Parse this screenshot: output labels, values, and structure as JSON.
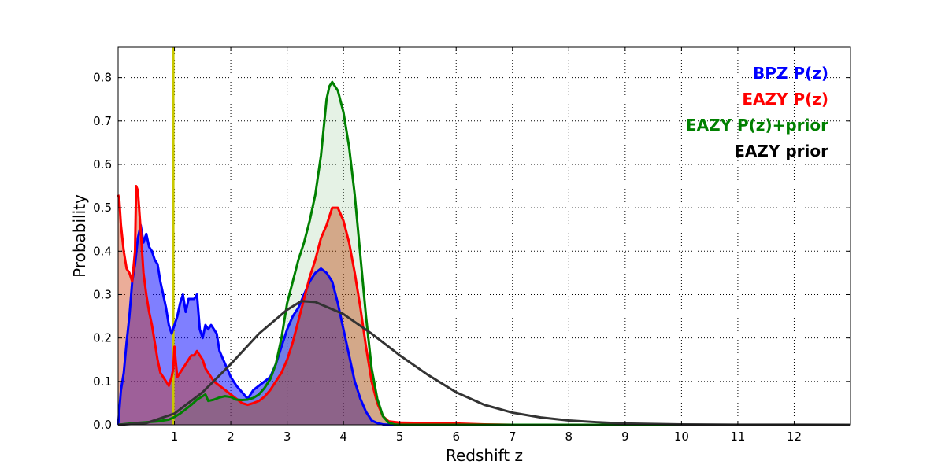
{
  "chart_data": {
    "type": "area",
    "xlabel": "Redshift z",
    "ylabel": "Probability",
    "xlim": [
      0,
      13
    ],
    "ylim": [
      0,
      0.87
    ],
    "grid": true,
    "legend_placement": "top-right",
    "x_ticks": [
      1,
      2,
      3,
      4,
      5,
      6,
      7,
      8,
      9,
      10,
      11,
      12
    ],
    "x_tick_labels": [
      "1",
      "2",
      "3",
      "4",
      "5",
      "6",
      "7",
      "8",
      "9",
      "10",
      "11",
      "12"
    ],
    "y_ticks": [
      0,
      0.1,
      0.2,
      0.3,
      0.4,
      0.5,
      0.6,
      0.7,
      0.8
    ],
    "y_tick_labels": [
      "0.0",
      "0.1",
      "0.2",
      "0.3",
      "0.4",
      "0.5",
      "0.6",
      "0.7",
      "0.8"
    ],
    "vertical_marker": {
      "x": 0.98,
      "color": "#c8c800"
    },
    "series": [
      {
        "name": "BPZ P(z)",
        "color": "#0000ff",
        "fill": "#0000ff",
        "fill_opacity": 0.5,
        "points": [
          [
            0,
            0
          ],
          [
            0.05,
            0.08
          ],
          [
            0.1,
            0.12
          ],
          [
            0.15,
            0.19
          ],
          [
            0.2,
            0.25
          ],
          [
            0.25,
            0.33
          ],
          [
            0.3,
            0.37
          ],
          [
            0.35,
            0.43
          ],
          [
            0.4,
            0.46
          ],
          [
            0.45,
            0.42
          ],
          [
            0.5,
            0.44
          ],
          [
            0.55,
            0.41
          ],
          [
            0.6,
            0.4
          ],
          [
            0.65,
            0.38
          ],
          [
            0.7,
            0.37
          ],
          [
            0.75,
            0.33
          ],
          [
            0.8,
            0.3
          ],
          [
            0.85,
            0.27
          ],
          [
            0.9,
            0.23
          ],
          [
            0.95,
            0.21
          ],
          [
            1.0,
            0.23
          ],
          [
            1.05,
            0.25
          ],
          [
            1.1,
            0.28
          ],
          [
            1.15,
            0.3
          ],
          [
            1.2,
            0.26
          ],
          [
            1.25,
            0.29
          ],
          [
            1.3,
            0.29
          ],
          [
            1.35,
            0.29
          ],
          [
            1.4,
            0.3
          ],
          [
            1.45,
            0.22
          ],
          [
            1.5,
            0.2
          ],
          [
            1.55,
            0.23
          ],
          [
            1.6,
            0.22
          ],
          [
            1.65,
            0.23
          ],
          [
            1.7,
            0.22
          ],
          [
            1.75,
            0.21
          ],
          [
            1.8,
            0.17
          ],
          [
            1.9,
            0.14
          ],
          [
            2.0,
            0.11
          ],
          [
            2.1,
            0.09
          ],
          [
            2.2,
            0.075
          ],
          [
            2.3,
            0.06
          ],
          [
            2.4,
            0.08
          ],
          [
            2.5,
            0.09
          ],
          [
            2.6,
            0.1
          ],
          [
            2.7,
            0.11
          ],
          [
            2.8,
            0.14
          ],
          [
            2.9,
            0.18
          ],
          [
            3.0,
            0.22
          ],
          [
            3.1,
            0.25
          ],
          [
            3.2,
            0.27
          ],
          [
            3.3,
            0.3
          ],
          [
            3.4,
            0.33
          ],
          [
            3.5,
            0.35
          ],
          [
            3.6,
            0.36
          ],
          [
            3.7,
            0.35
          ],
          [
            3.8,
            0.33
          ],
          [
            3.9,
            0.28
          ],
          [
            4.0,
            0.22
          ],
          [
            4.1,
            0.16
          ],
          [
            4.2,
            0.1
          ],
          [
            4.3,
            0.06
          ],
          [
            4.4,
            0.03
          ],
          [
            4.5,
            0.01
          ],
          [
            4.6,
            0.004
          ],
          [
            4.7,
            0.001
          ],
          [
            4.8,
            0
          ],
          [
            13,
            0
          ]
        ]
      },
      {
        "name": "EAZY P(z)",
        "color": "#ff0000",
        "fill": "#cc3300",
        "fill_opacity": 0.4,
        "points": [
          [
            0,
            0.53
          ],
          [
            0.02,
            0.52
          ],
          [
            0.05,
            0.46
          ],
          [
            0.1,
            0.4
          ],
          [
            0.15,
            0.36
          ],
          [
            0.2,
            0.35
          ],
          [
            0.25,
            0.33
          ],
          [
            0.3,
            0.4
          ],
          [
            0.32,
            0.55
          ],
          [
            0.35,
            0.54
          ],
          [
            0.4,
            0.45
          ],
          [
            0.45,
            0.35
          ],
          [
            0.5,
            0.3
          ],
          [
            0.55,
            0.26
          ],
          [
            0.6,
            0.23
          ],
          [
            0.65,
            0.19
          ],
          [
            0.7,
            0.15
          ],
          [
            0.75,
            0.12
          ],
          [
            0.8,
            0.11
          ],
          [
            0.85,
            0.1
          ],
          [
            0.9,
            0.09
          ],
          [
            0.95,
            0.11
          ],
          [
            0.98,
            0.13
          ],
          [
            1.0,
            0.18
          ],
          [
            1.02,
            0.15
          ],
          [
            1.05,
            0.11
          ],
          [
            1.1,
            0.12
          ],
          [
            1.15,
            0.13
          ],
          [
            1.2,
            0.14
          ],
          [
            1.25,
            0.15
          ],
          [
            1.3,
            0.16
          ],
          [
            1.35,
            0.16
          ],
          [
            1.4,
            0.17
          ],
          [
            1.45,
            0.16
          ],
          [
            1.5,
            0.15
          ],
          [
            1.55,
            0.13
          ],
          [
            1.6,
            0.12
          ],
          [
            1.7,
            0.1
          ],
          [
            1.8,
            0.09
          ],
          [
            1.9,
            0.08
          ],
          [
            2.0,
            0.07
          ],
          [
            2.1,
            0.06
          ],
          [
            2.2,
            0.05
          ],
          [
            2.3,
            0.046
          ],
          [
            2.4,
            0.05
          ],
          [
            2.5,
            0.055
          ],
          [
            2.6,
            0.065
          ],
          [
            2.7,
            0.08
          ],
          [
            2.8,
            0.1
          ],
          [
            2.9,
            0.12
          ],
          [
            3.0,
            0.15
          ],
          [
            3.1,
            0.19
          ],
          [
            3.2,
            0.24
          ],
          [
            3.3,
            0.29
          ],
          [
            3.4,
            0.34
          ],
          [
            3.5,
            0.38
          ],
          [
            3.6,
            0.43
          ],
          [
            3.7,
            0.46
          ],
          [
            3.8,
            0.5
          ],
          [
            3.9,
            0.5
          ],
          [
            4.0,
            0.47
          ],
          [
            4.1,
            0.42
          ],
          [
            4.2,
            0.35
          ],
          [
            4.3,
            0.27
          ],
          [
            4.4,
            0.18
          ],
          [
            4.5,
            0.1
          ],
          [
            4.6,
            0.05
          ],
          [
            4.7,
            0.02
          ],
          [
            4.8,
            0.008
          ],
          [
            5.0,
            0.005
          ],
          [
            5.5,
            0.004
          ],
          [
            6.0,
            0.003
          ],
          [
            6.5,
            0.001
          ],
          [
            7.0,
            0
          ],
          [
            13,
            0
          ]
        ]
      },
      {
        "name": "EAZY P(z)+prior",
        "color": "#008000",
        "fill": "#008000",
        "fill_opacity": 0.1,
        "points": [
          [
            0,
            0
          ],
          [
            0.3,
            0.004
          ],
          [
            0.5,
            0.006
          ],
          [
            0.7,
            0.008
          ],
          [
            0.9,
            0.012
          ],
          [
            1.0,
            0.018
          ],
          [
            1.1,
            0.026
          ],
          [
            1.2,
            0.036
          ],
          [
            1.3,
            0.046
          ],
          [
            1.4,
            0.058
          ],
          [
            1.5,
            0.066
          ],
          [
            1.55,
            0.07
          ],
          [
            1.6,
            0.055
          ],
          [
            1.7,
            0.058
          ],
          [
            1.8,
            0.063
          ],
          [
            1.9,
            0.066
          ],
          [
            2.0,
            0.064
          ],
          [
            2.1,
            0.058
          ],
          [
            2.2,
            0.057
          ],
          [
            2.3,
            0.058
          ],
          [
            2.4,
            0.062
          ],
          [
            2.5,
            0.07
          ],
          [
            2.6,
            0.085
          ],
          [
            2.7,
            0.105
          ],
          [
            2.8,
            0.14
          ],
          [
            2.9,
            0.2
          ],
          [
            3.0,
            0.28
          ],
          [
            3.1,
            0.33
          ],
          [
            3.2,
            0.38
          ],
          [
            3.3,
            0.42
          ],
          [
            3.4,
            0.47
          ],
          [
            3.5,
            0.53
          ],
          [
            3.6,
            0.62
          ],
          [
            3.7,
            0.75
          ],
          [
            3.75,
            0.78
          ],
          [
            3.8,
            0.79
          ],
          [
            3.85,
            0.78
          ],
          [
            3.9,
            0.77
          ],
          [
            4.0,
            0.72
          ],
          [
            4.1,
            0.64
          ],
          [
            4.2,
            0.53
          ],
          [
            4.3,
            0.39
          ],
          [
            4.4,
            0.25
          ],
          [
            4.5,
            0.13
          ],
          [
            4.6,
            0.06
          ],
          [
            4.7,
            0.02
          ],
          [
            4.8,
            0.005
          ],
          [
            4.9,
            0.001
          ],
          [
            5.0,
            0
          ],
          [
            13,
            0
          ]
        ]
      },
      {
        "name": "EAZY prior",
        "color": "#333333",
        "fill": "none",
        "fill_opacity": 0,
        "points": [
          [
            0,
            0
          ],
          [
            0.5,
            0.004
          ],
          [
            1.0,
            0.026
          ],
          [
            1.5,
            0.075
          ],
          [
            2.0,
            0.14
          ],
          [
            2.5,
            0.21
          ],
          [
            3.0,
            0.265
          ],
          [
            3.25,
            0.285
          ],
          [
            3.5,
            0.283
          ],
          [
            4.0,
            0.255
          ],
          [
            4.5,
            0.21
          ],
          [
            5.0,
            0.16
          ],
          [
            5.5,
            0.115
          ],
          [
            6.0,
            0.075
          ],
          [
            6.5,
            0.046
          ],
          [
            7.0,
            0.028
          ],
          [
            7.5,
            0.017
          ],
          [
            8.0,
            0.01
          ],
          [
            8.5,
            0.006
          ],
          [
            9.0,
            0.003
          ],
          [
            10.0,
            0.001
          ],
          [
            11.0,
            0.0003
          ],
          [
            13,
            0
          ]
        ]
      }
    ],
    "legend": [
      {
        "label": "BPZ P(z)",
        "color": "#0000ff"
      },
      {
        "label": "EAZY P(z)",
        "color": "#ff0000"
      },
      {
        "label": "EAZY P(z)+prior",
        "color": "#008000"
      },
      {
        "label": "EAZY prior",
        "color": "#000000"
      }
    ]
  }
}
